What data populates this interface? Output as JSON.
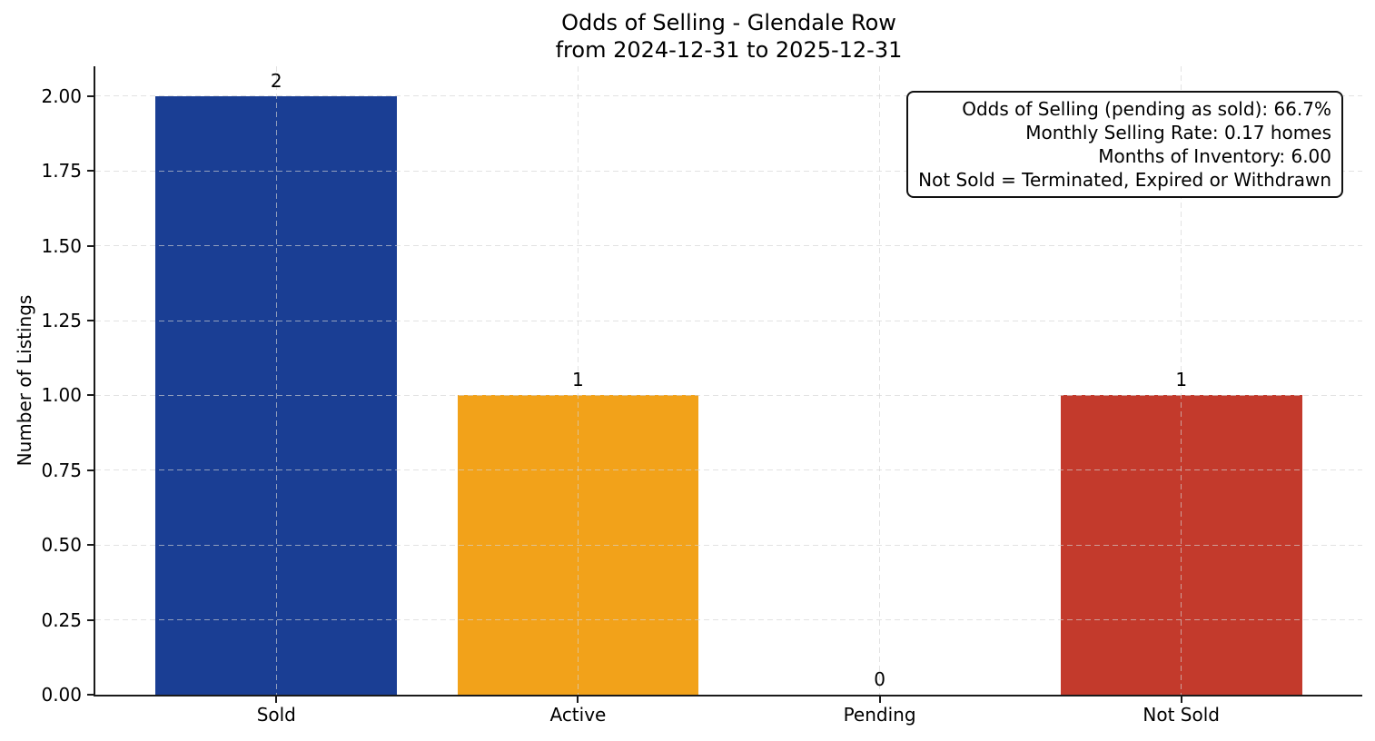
{
  "chart_data": {
    "type": "bar",
    "title": "Odds of Selling - Glendale Row",
    "subtitle": "from 2024-12-31 to 2025-12-31",
    "categories": [
      "Sold",
      "Active",
      "Pending",
      "Not Sold"
    ],
    "values": [
      2,
      1,
      0,
      1
    ],
    "bar_value_labels": [
      "2",
      "1",
      "0",
      "1"
    ],
    "colors": [
      "#1a3e94",
      "#f2a21a",
      null,
      "#c33a2c"
    ],
    "ylabel": "Number of Listings",
    "xlabel": "",
    "yticks": [
      0,
      0.25,
      0.5,
      0.75,
      1,
      1.25,
      1.5,
      1.75,
      2
    ],
    "ytick_labels": [
      "0.00",
      "0.25",
      "0.50",
      "0.75",
      "1.00",
      "1.25",
      "1.50",
      "1.75",
      "2.00"
    ],
    "ylim": [
      0,
      2.1
    ],
    "grid": {
      "which": "both",
      "style": "dashed",
      "color": "#d3d3d3"
    },
    "legend": "none",
    "annotation": {
      "position": "top-right",
      "lines": [
        "Odds of Selling (pending as sold): 66.7%",
        "Monthly Selling Rate: 0.17 homes",
        "Months of Inventory: 6.00",
        "Not Sold = Terminated, Expired or Withdrawn"
      ]
    }
  }
}
